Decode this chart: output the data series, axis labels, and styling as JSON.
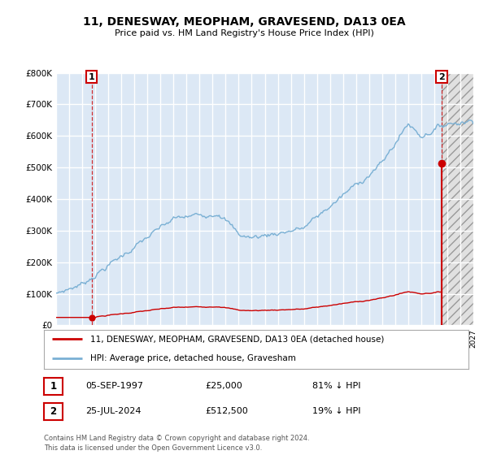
{
  "title": "11, DENESWAY, MEOPHAM, GRAVESEND, DA13 0EA",
  "subtitle": "Price paid vs. HM Land Registry's House Price Index (HPI)",
  "background_color": "#ffffff",
  "plot_background": "#dce8f5",
  "hatch_background": "#e8e8e8",
  "grid_color": "#ffffff",
  "hpi_color": "#7ab0d4",
  "price_color": "#cc0000",
  "sale1_date": 1997.73,
  "sale1_price": 25000,
  "sale1_label": "1",
  "sale1_annotation": "05-SEP-1997",
  "sale1_price_label": "£25,000",
  "sale1_hpi_label": "81% ↓ HPI",
  "sale2_date": 2024.56,
  "sale2_price": 512500,
  "sale2_label": "2",
  "sale2_annotation": "25-JUL-2024",
  "sale2_price_label": "£512,500",
  "sale2_hpi_label": "19% ↓ HPI",
  "legend_line1": "11, DENESWAY, MEOPHAM, GRAVESEND, DA13 0EA (detached house)",
  "legend_line2": "HPI: Average price, detached house, Gravesham",
  "footnote": "Contains HM Land Registry data © Crown copyright and database right 2024.\nThis data is licensed under the Open Government Licence v3.0.",
  "xmin": 1995.0,
  "xmax": 2027.0,
  "ymin": 0,
  "ymax": 800000,
  "yticks": [
    0,
    100000,
    200000,
    300000,
    400000,
    500000,
    600000,
    700000,
    800000
  ]
}
